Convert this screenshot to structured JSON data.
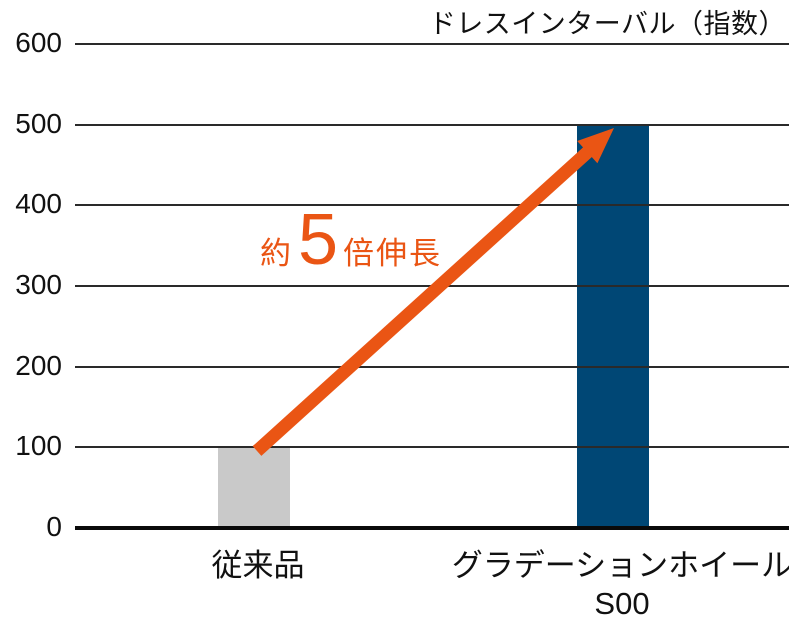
{
  "chart_data": {
    "type": "bar",
    "title": "ドレスインターバル（指数）",
    "categories": [
      "従来品",
      "グラデーションホイール\nS00"
    ],
    "values": [
      100,
      500
    ],
    "bar_colors": [
      "#c9c9c9",
      "#004775"
    ],
    "xlabel": "",
    "ylabel": "",
    "ylim": [
      0,
      600
    ],
    "yticks": [
      0,
      100,
      200,
      300,
      400,
      500,
      600
    ],
    "grid": true,
    "legend": "none",
    "annotation": {
      "prefix": "約",
      "multiplier": "5",
      "suffix": "倍伸長",
      "meaning": "approx. 5x growth from first bar to second bar",
      "color": "#ea5514"
    },
    "colors": {
      "axis": "#0a0a0a",
      "gridline": "#2a2a2a",
      "text": "#111111",
      "accent_orange": "#ea5514",
      "bar_gray": "#c9c9c9",
      "bar_blue": "#004775"
    }
  }
}
